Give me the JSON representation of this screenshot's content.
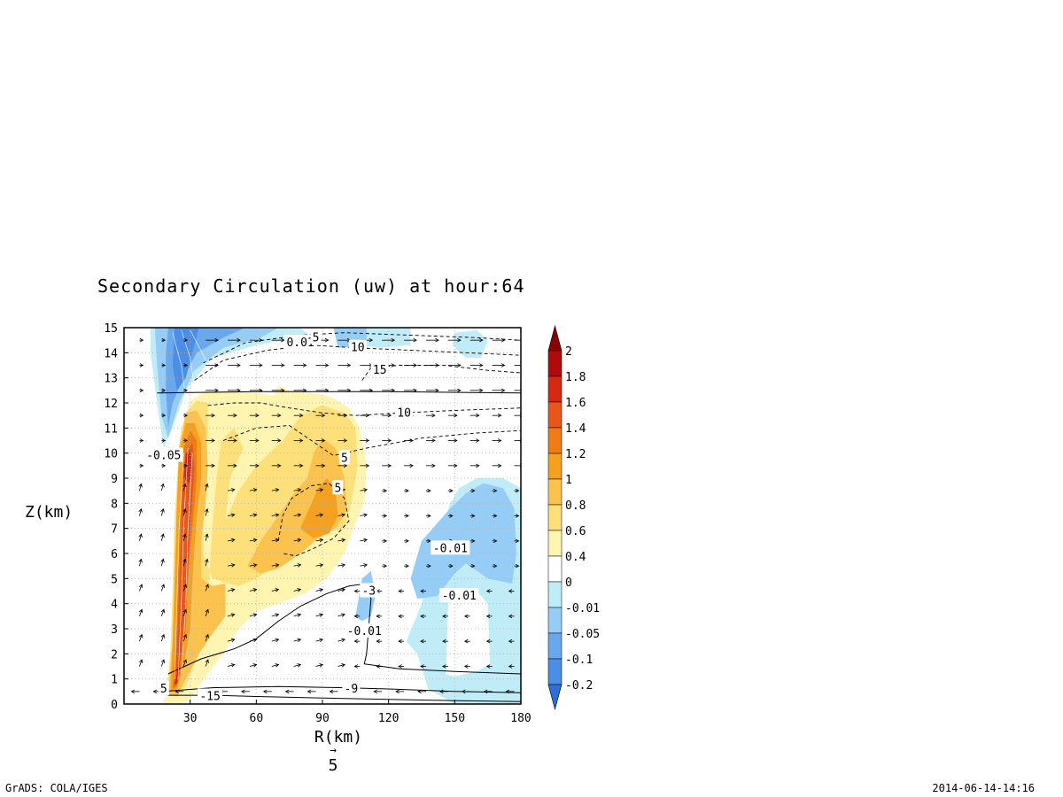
{
  "chart_data": {
    "type": "contour",
    "title": "Secondary Circulation (uw) at hour:64",
    "xlabel": "R(km)",
    "ylabel": "Z(km)",
    "xlim": [
      0,
      180
    ],
    "ylim": [
      0,
      15
    ],
    "x_ticks": [
      "30",
      "60",
      "90",
      "120",
      "150",
      "180"
    ],
    "y_ticks": [
      "0",
      "1",
      "2",
      "3",
      "4",
      "5",
      "6",
      "7",
      "8",
      "9",
      "10",
      "11",
      "12",
      "13",
      "14",
      "15"
    ],
    "grid": true,
    "vector_reference": {
      "arrow": "→",
      "value": "5"
    },
    "colorbar": {
      "levels": [
        "-0.2",
        "-0.1",
        "-0.05",
        "-0.01",
        "0",
        "0.4",
        "0.6",
        "0.8",
        "1",
        "1.2",
        "1.4",
        "1.6",
        "1.8",
        "2"
      ],
      "colors": [
        "#2f6fd6",
        "#4a8ee8",
        "#6aa8ee",
        "#96cdf6",
        "#c0ecf8",
        "#ffffff",
        "#fff4b0",
        "#fde07a",
        "#fbc24e",
        "#f6a020",
        "#f07c16",
        "#e8561a",
        "#d42a14",
        "#b20a0a",
        "#8a0000"
      ]
    },
    "shaded_field": "w",
    "contour_field": "u",
    "contour_labels": [
      {
        "text": "-0.05",
        "r": 18,
        "z": 9.9
      },
      {
        "text": "0.01",
        "r": 80,
        "z": 14.4
      },
      {
        "text": "5",
        "r": 87,
        "z": 14.6
      },
      {
        "text": "10",
        "r": 106,
        "z": 14.2
      },
      {
        "text": "15",
        "r": 116,
        "z": 13.3
      },
      {
        "text": "10",
        "r": 127,
        "z": 11.6
      },
      {
        "text": "5",
        "r": 100,
        "z": 9.8
      },
      {
        "text": "5",
        "r": 97,
        "z": 8.6
      },
      {
        "text": "-0.01",
        "r": 148,
        "z": 6.2
      },
      {
        "text": "-0.01",
        "r": 152,
        "z": 4.3
      },
      {
        "text": "-3",
        "r": 111,
        "z": 4.5
      },
      {
        "text": "-0.01",
        "r": 109,
        "z": 2.9
      },
      {
        "text": "-9",
        "r": 103,
        "z": 0.6
      },
      {
        "text": "5",
        "r": 18,
        "z": 0.6
      },
      {
        "text": "-15",
        "r": 39,
        "z": 0.3
      }
    ]
  },
  "footer": {
    "left": "GrADS: COLA/IGES",
    "right": "2014-06-14-14:16"
  }
}
